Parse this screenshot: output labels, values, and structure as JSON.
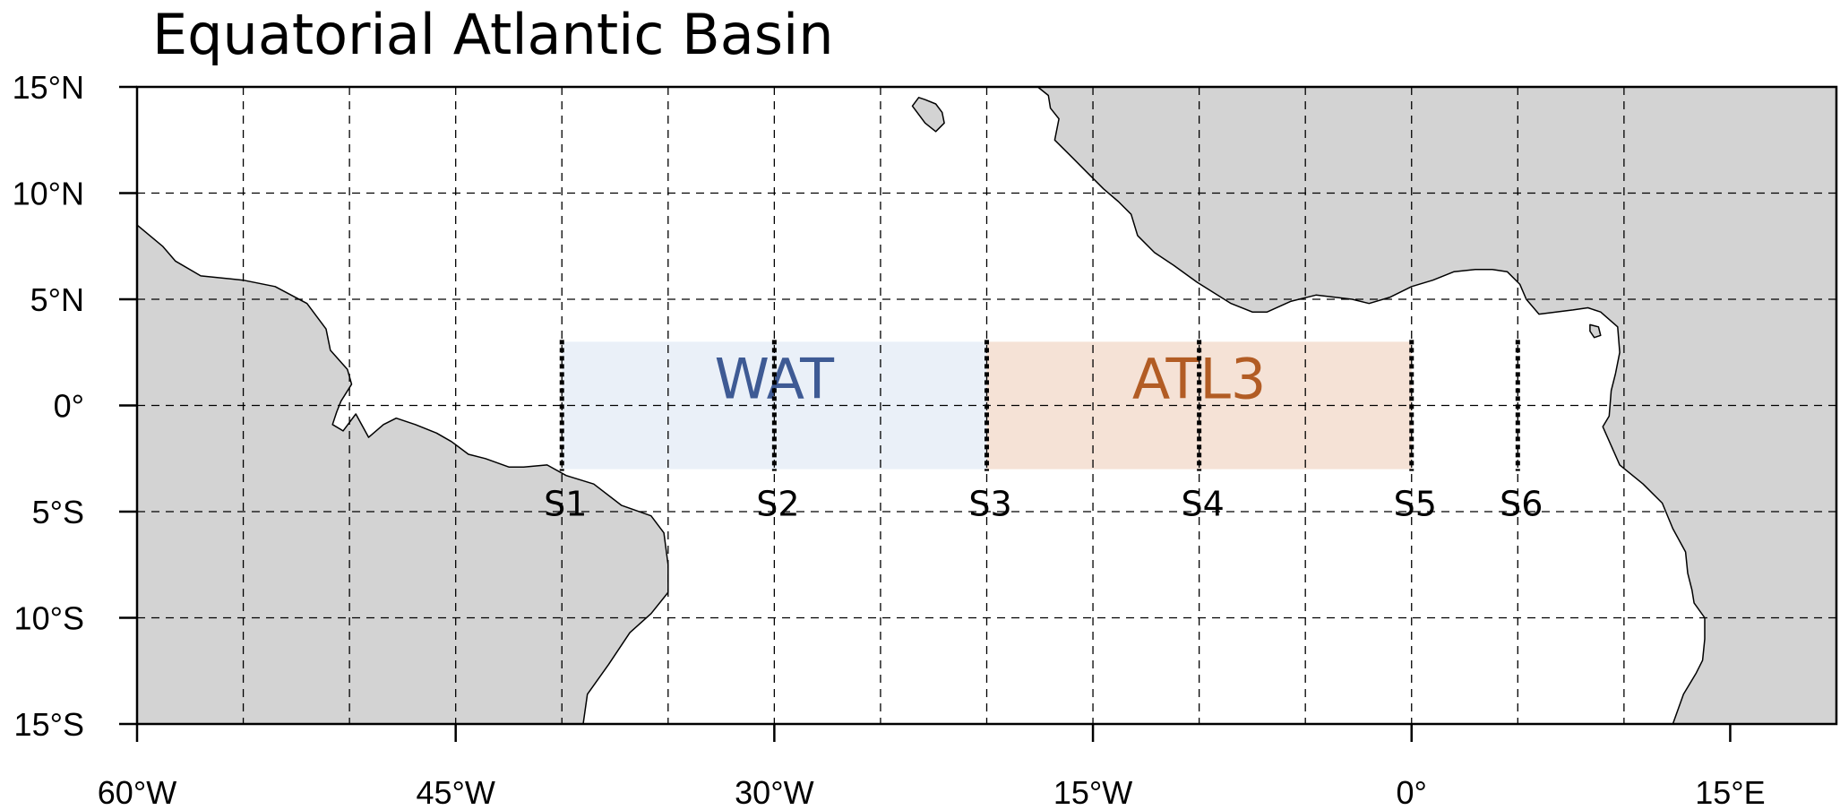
{
  "title": "Equatorial Atlantic Basin",
  "map": {
    "lon_range": [
      -60,
      20
    ],
    "lat_range": [
      -15,
      15
    ],
    "grid_lons": [
      -55,
      -50,
      -45,
      -40,
      -35,
      -30,
      -25,
      -20,
      -15,
      -10,
      -5,
      0,
      5,
      10
    ],
    "grid_lats": [
      -10,
      -5,
      0,
      5,
      10
    ],
    "land_color": "#d3d3d3",
    "ocean_color": "#ffffff"
  },
  "lon_ticks": [
    {
      "value": -60,
      "label": "60°W"
    },
    {
      "value": -45,
      "label": "45°W"
    },
    {
      "value": -30,
      "label": "30°W"
    },
    {
      "value": -15,
      "label": "15°W"
    },
    {
      "value": 0,
      "label": "0°"
    },
    {
      "value": 15,
      "label": "15°E"
    }
  ],
  "lat_ticks": [
    {
      "value": 15,
      "label": "15°N"
    },
    {
      "value": 10,
      "label": "10°N"
    },
    {
      "value": 5,
      "label": "5°N"
    },
    {
      "value": 0,
      "label": "0°"
    },
    {
      "value": -5,
      "label": "5°S"
    },
    {
      "value": -10,
      "label": "10°S"
    },
    {
      "value": -15,
      "label": "15°S"
    }
  ],
  "regions": [
    {
      "name": "WAT",
      "lon": [
        -40,
        -20
      ],
      "lat": [
        -3,
        3
      ],
      "fill": "#eaf0f8",
      "label_color": "#3e5a94"
    },
    {
      "name": "ATL3",
      "lon": [
        -20,
        0
      ],
      "lat": [
        -3,
        3
      ],
      "fill": "#f5e2d6",
      "label_color": "#b25c24"
    }
  ],
  "sections": [
    {
      "name": "S1",
      "lon": -40,
      "lat": [
        -3,
        3
      ]
    },
    {
      "name": "S2",
      "lon": -30,
      "lat": [
        -3,
        3
      ]
    },
    {
      "name": "S3",
      "lon": -20,
      "lat": [
        -3,
        3
      ]
    },
    {
      "name": "S4",
      "lon": -10,
      "lat": [
        -3,
        3
      ]
    },
    {
      "name": "S5",
      "lon": 0,
      "lat": [
        -3,
        3
      ]
    },
    {
      "name": "S6",
      "lon": 5,
      "lat": [
        -3,
        3
      ]
    }
  ],
  "land": {
    "south_america": [
      [
        -60,
        8.5
      ],
      [
        -58.8,
        7.5
      ],
      [
        -58.2,
        6.8
      ],
      [
        -57,
        6.1
      ],
      [
        -55,
        5.9
      ],
      [
        -53.5,
        5.6
      ],
      [
        -52,
        4.8
      ],
      [
        -51.1,
        3.6
      ],
      [
        -50.9,
        2.6
      ],
      [
        -50.1,
        1.7
      ],
      [
        -49.9,
        1.0
      ],
      [
        -50.4,
        0.2
      ],
      [
        -50.6,
        -0.3
      ],
      [
        -50.8,
        -0.9
      ],
      [
        -50.3,
        -1.2
      ],
      [
        -49.7,
        -0.4
      ],
      [
        -49.1,
        -1.5
      ],
      [
        -48.4,
        -0.9
      ],
      [
        -47.8,
        -0.6
      ],
      [
        -46.9,
        -0.9
      ],
      [
        -45.9,
        -1.3
      ],
      [
        -45.2,
        -1.7
      ],
      [
        -44.4,
        -2.3
      ],
      [
        -43.6,
        -2.5
      ],
      [
        -42.5,
        -2.9
      ],
      [
        -41.8,
        -2.9
      ],
      [
        -40.7,
        -2.8
      ],
      [
        -39.8,
        -3.3
      ],
      [
        -38.5,
        -3.7
      ],
      [
        -37.2,
        -4.7
      ],
      [
        -35.8,
        -5.2
      ],
      [
        -35.2,
        -6.0
      ],
      [
        -35.0,
        -7.5
      ],
      [
        -35.0,
        -8.8
      ],
      [
        -35.8,
        -9.8
      ],
      [
        -36.8,
        -10.7
      ],
      [
        -37.8,
        -12.2
      ],
      [
        -38.8,
        -13.6
      ],
      [
        -39.0,
        -15
      ],
      [
        -60,
        -15
      ]
    ],
    "africa": [
      [
        -17.6,
        15
      ],
      [
        -17.1,
        14.6
      ],
      [
        -17.0,
        14.0
      ],
      [
        -16.6,
        13.5
      ],
      [
        -16.8,
        12.5
      ],
      [
        -16.0,
        11.7
      ],
      [
        -15.3,
        11.0
      ],
      [
        -14.5,
        10.2
      ],
      [
        -13.8,
        9.6
      ],
      [
        -13.2,
        9.0
      ],
      [
        -12.9,
        8.0
      ],
      [
        -12.1,
        7.2
      ],
      [
        -11.2,
        6.6
      ],
      [
        -10.1,
        5.8
      ],
      [
        -8.5,
        4.8
      ],
      [
        -7.5,
        4.4
      ],
      [
        -6.8,
        4.4
      ],
      [
        -5.7,
        4.9
      ],
      [
        -4.5,
        5.2
      ],
      [
        -2.8,
        5.0
      ],
      [
        -2.0,
        4.8
      ],
      [
        -1.0,
        5.1
      ],
      [
        0,
        5.6
      ],
      [
        1.0,
        5.9
      ],
      [
        2.0,
        6.3
      ],
      [
        3.0,
        6.4
      ],
      [
        3.8,
        6.4
      ],
      [
        4.5,
        6.3
      ],
      [
        5.1,
        5.7
      ],
      [
        5.4,
        5.0
      ],
      [
        6.0,
        4.3
      ],
      [
        6.8,
        4.4
      ],
      [
        7.6,
        4.5
      ],
      [
        8.3,
        4.6
      ],
      [
        8.9,
        4.4
      ],
      [
        9.7,
        3.7
      ],
      [
        9.8,
        2.5
      ],
      [
        9.6,
        1.5
      ],
      [
        9.4,
        0.7
      ],
      [
        9.3,
        -0.5
      ],
      [
        9.0,
        -1.0
      ],
      [
        9.8,
        -2.8
      ],
      [
        10.9,
        -3.7
      ],
      [
        11.8,
        -4.6
      ],
      [
        12.3,
        -5.8
      ],
      [
        12.9,
        -6.9
      ],
      [
        13.0,
        -7.9
      ],
      [
        13.2,
        -8.7
      ],
      [
        13.3,
        -9.3
      ],
      [
        13.8,
        -10.0
      ],
      [
        13.8,
        -11.0
      ],
      [
        13.7,
        -12.0
      ],
      [
        13.4,
        -12.6
      ],
      [
        12.8,
        -13.6
      ],
      [
        12.3,
        -15
      ],
      [
        20,
        -15
      ],
      [
        20,
        15
      ]
    ],
    "bioko": [
      [
        8.4,
        3.8
      ],
      [
        8.8,
        3.7
      ],
      [
        8.9,
        3.3
      ],
      [
        8.6,
        3.2
      ],
      [
        8.4,
        3.5
      ]
    ],
    "cape_verde": [
      [
        -23.2,
        14.5
      ],
      [
        -22.9,
        14.4
      ],
      [
        -22.4,
        14.2
      ],
      [
        -22.1,
        13.8
      ],
      [
        -22.0,
        13.3
      ],
      [
        -22.4,
        12.9
      ],
      [
        -22.9,
        13.3
      ],
      [
        -23.5,
        14.1
      ]
    ]
  }
}
